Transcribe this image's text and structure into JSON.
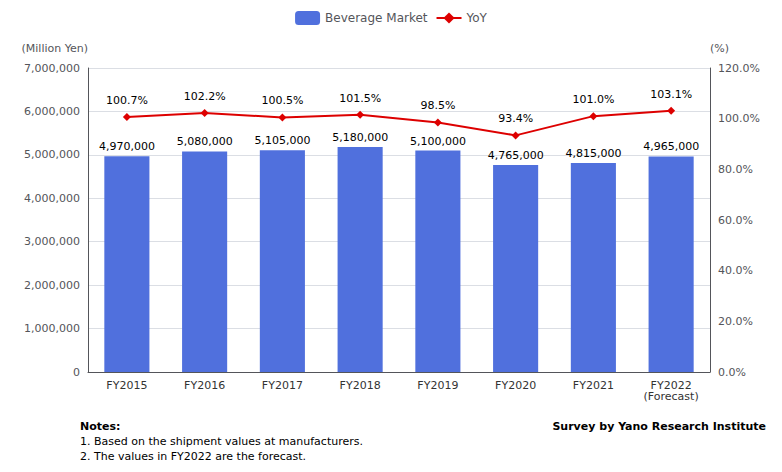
{
  "chart_data": {
    "type": "bar",
    "categories": [
      "FY2015",
      "FY2016",
      "FY2017",
      "FY2018",
      "FY2019",
      "FY2020",
      "FY2021",
      "FY2022\n(Forecast)"
    ],
    "series": [
      {
        "name": "Beverage Market",
        "type": "bar",
        "values": [
          4970000,
          5080000,
          5105000,
          5180000,
          5100000,
          4765000,
          4815000,
          4965000
        ],
        "value_labels": [
          "4,970,000",
          "5,080,000",
          "5,105,000",
          "5,180,000",
          "5,100,000",
          "4,765,000",
          "4,815,000",
          "4,965,000"
        ]
      },
      {
        "name": "YoY",
        "type": "line",
        "axis": "y2",
        "color": "#dd0000",
        "marker": "diamond",
        "values": [
          1.007,
          1.022,
          1.005,
          1.015,
          0.985,
          0.934,
          1.01,
          1.031
        ],
        "value_labels": [
          "100.7%",
          "102.2%",
          "100.5%",
          "101.5%",
          "98.5%",
          "93.4%",
          "101.0%",
          "103.1%"
        ]
      }
    ],
    "ylabel": "(Million Yen)",
    "y2label": "(%)",
    "ylim": [
      0,
      7000000
    ],
    "yticks": [
      0,
      {
        "value": 1000000,
        "label": "1,000,000"
      },
      {
        "value": 2000000,
        "label": "2,000,000"
      },
      {
        "value": 3000000,
        "label": "3,000,000"
      },
      {
        "value": 4000000,
        "label": "4,000,000"
      },
      {
        "value": 5000000,
        "label": "5,000,000"
      },
      {
        "value": 6000000,
        "label": "6,000,000"
      },
      {
        "value": 7000000,
        "label": "7,000,000"
      }
    ],
    "y2lim": [
      0.0,
      1.2
    ],
    "y2ticks": [
      {
        "value": 0.0,
        "label": "0.0%"
      },
      {
        "value": 0.2,
        "label": "20.0%"
      },
      {
        "value": 0.4,
        "label": "40.0%"
      },
      {
        "value": 0.6,
        "label": "60.0%"
      },
      {
        "value": 0.8,
        "label": "80.0%"
      },
      {
        "value": 1.0,
        "label": "100.0%"
      },
      {
        "value": 1.2,
        "label": "120.0%"
      }
    ],
    "grid": true,
    "legend": "top",
    "data_labels": true,
    "annotations": [
      "Notes:",
      "1. Based on the shipment values at manufacturers.",
      "2. The values in FY2022 are the forecast.",
      "Survey by Yano Research Institute"
    ]
  }
}
